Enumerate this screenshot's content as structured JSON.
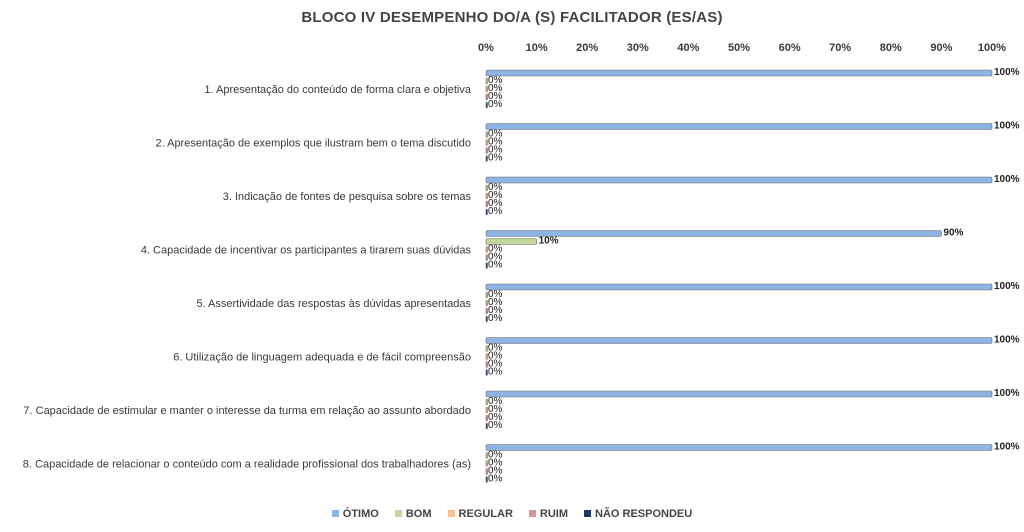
{
  "chart_data": {
    "type": "bar",
    "orientation": "horizontal",
    "title": "BLOCO IV DESEMPENHO DO/A (S) FACILITADOR (ES/AS)",
    "xlim": [
      0,
      100
    ],
    "x_ticks": [
      "0%",
      "10%",
      "20%",
      "30%",
      "40%",
      "50%",
      "60%",
      "70%",
      "80%",
      "90%",
      "100%"
    ],
    "axis_position": "top",
    "grid": false,
    "legend_position": "bottom",
    "categories": [
      "1. Apresentação do conteúdo de forma clara e objetiva",
      "2. Apresentação de exemplos que ilustram bem o tema discutido",
      "3. Indicação de fontes de pesquisa sobre os temas",
      "4. Capacidade de incentivar os participantes a tirarem suas dúvidas",
      "5. Assertividade das respostas às dúvidas apresentadas",
      "6. Utilização de linguagem adequada e de fácil compreensão",
      "7. Capacidade de estimular e manter o interesse da turma em relação ao assunto abordado",
      "8. Capacidade de relacionar  o conteúdo com a realidade profissional dos trabalhadores (as)"
    ],
    "series": [
      {
        "name": "ÓTIMO",
        "color": "#8eb4e3",
        "values": [
          100,
          100,
          100,
          90,
          100,
          100,
          100,
          100
        ]
      },
      {
        "name": "BOM",
        "color": "#c3d69b",
        "values": [
          0,
          0,
          0,
          10,
          0,
          0,
          0,
          0
        ]
      },
      {
        "name": "REGULAR",
        "color": "#fac090",
        "values": [
          0,
          0,
          0,
          0,
          0,
          0,
          0,
          0
        ]
      },
      {
        "name": "RUIM",
        "color": "#d99694",
        "values": [
          0,
          0,
          0,
          0,
          0,
          0,
          0,
          0
        ]
      },
      {
        "name": "NÃO RESPONDEU",
        "color": "#1f3864",
        "values": [
          0,
          0,
          0,
          0,
          0,
          0,
          0,
          0
        ]
      }
    ]
  }
}
